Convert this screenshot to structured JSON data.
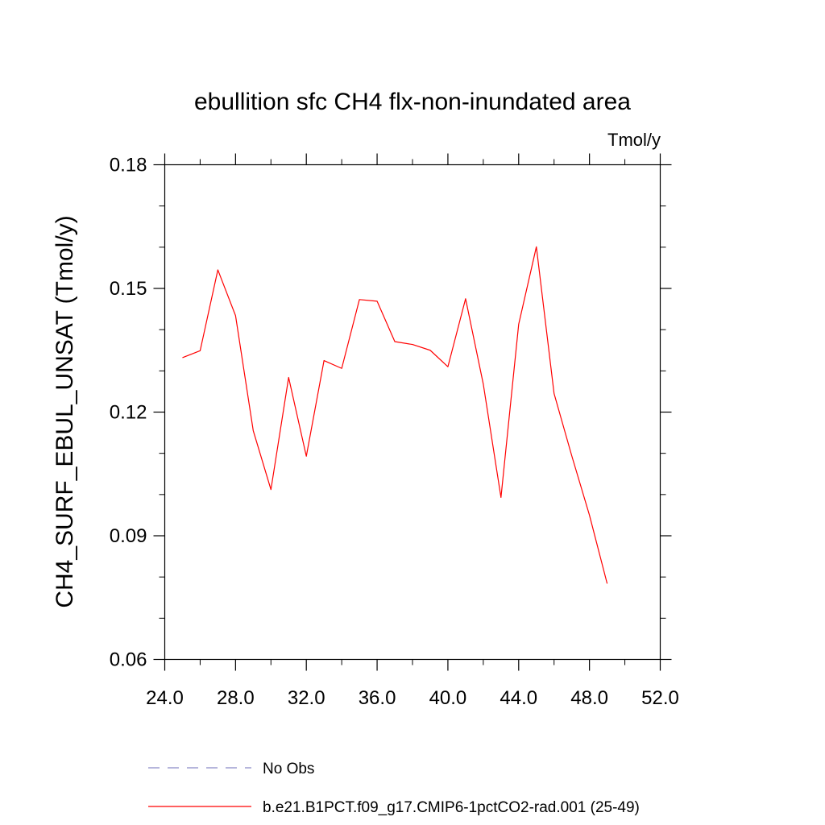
{
  "chart_data": {
    "type": "line",
    "title": "ebullition sfc CH4 flx-non-inundated area",
    "units_label": "Tmol/y",
    "xlabel": "",
    "ylabel": "CH4_SURF_EBUL_UNSAT  (Tmol/y)",
    "xlim": [
      24,
      52
    ],
    "ylim": [
      0.06,
      0.18
    ],
    "x_ticks": [
      24,
      28,
      32,
      36,
      40,
      44,
      48,
      52
    ],
    "x_tick_labels": [
      "24.0",
      "28.0",
      "32.0",
      "36.0",
      "40.0",
      "44.0",
      "48.0",
      "52.0"
    ],
    "y_ticks": [
      0.06,
      0.09,
      0.12,
      0.15,
      0.18
    ],
    "y_tick_labels": [
      "0.06",
      "0.09",
      "0.12",
      "0.15",
      "0.18"
    ],
    "grid": false,
    "legend_position": "bottom",
    "legend": [
      {
        "label": "No Obs",
        "color": "#8a8ac8",
        "style": "dashed"
      },
      {
        "label": "b.e21.B1PCT.f09_g17.CMIP6-1pctCO2-rad.001 (25-49)",
        "color": "#ff0000",
        "style": "solid"
      }
    ],
    "series": [
      {
        "name": "b.e21.B1PCT.f09_g17.CMIP6-1pctCO2-rad.001 (25-49)",
        "color": "#ff0000",
        "x": [
          25,
          26,
          27,
          28,
          29,
          30,
          31,
          32,
          33,
          34,
          35,
          36,
          37,
          38,
          39,
          40,
          41,
          42,
          43,
          44,
          45,
          46,
          47,
          48,
          49
        ],
        "y": [
          0.1332,
          0.1349,
          0.1545,
          0.1434,
          0.1155,
          0.1012,
          0.1284,
          0.1093,
          0.1325,
          0.1306,
          0.1473,
          0.1469,
          0.1371,
          0.1364,
          0.135,
          0.131,
          0.1475,
          0.1268,
          0.0993,
          0.1413,
          0.1601,
          0.1245,
          0.1094,
          0.095,
          0.0784
        ]
      }
    ]
  }
}
